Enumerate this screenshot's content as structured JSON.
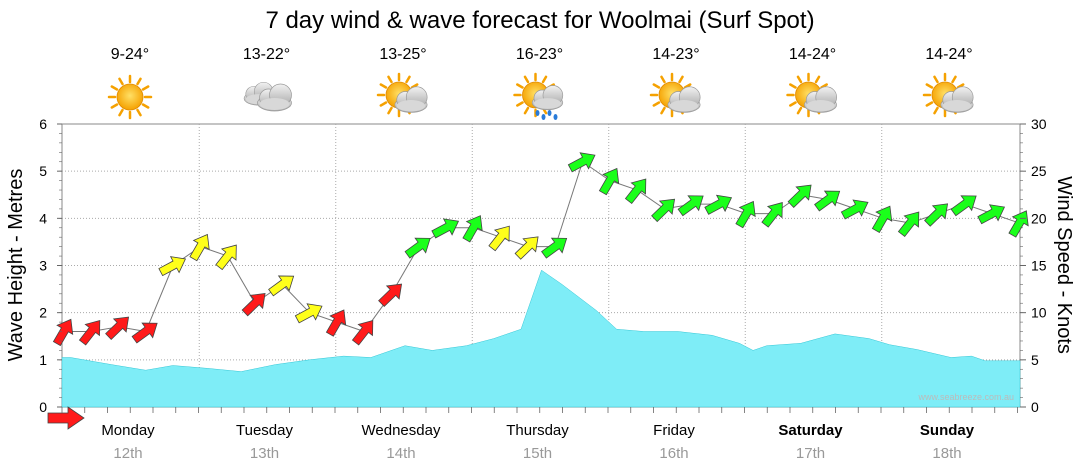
{
  "colors": {
    "wave_fill": "#7eedf7",
    "wave_stroke": "#35c7d6",
    "wind_red": "#ff1a1a",
    "wind_yellow": "#ffff1a",
    "wind_green": "#1aff1a",
    "grid": "#aaaaaa"
  },
  "weather": [
    {
      "temp": "9-24°",
      "icon": "sun-icon"
    },
    {
      "temp": "13-22°",
      "icon": "cloudy-icon"
    },
    {
      "temp": "13-25°",
      "icon": "partly-cloudy-icon"
    },
    {
      "temp": "16-23°",
      "icon": "sun-rain-icon"
    },
    {
      "temp": "14-23°",
      "icon": "partly-cloudy-icon"
    },
    {
      "temp": "14-24°",
      "icon": "partly-cloudy-icon"
    },
    {
      "temp": "14-24°",
      "icon": "partly-cloudy-icon"
    }
  ],
  "credit": "www.seabreeze.com.au",
  "chart_data": {
    "type": "area",
    "title": "7 day wind & wave forecast for Woolmai (Surf Spot)",
    "ylabel_left": "Wave Height - Metres",
    "ylabel_right": "Wind Speed - Knots",
    "ylim_left": [
      0,
      6
    ],
    "ylim_right": [
      0,
      30
    ],
    "yticks_left": [
      "0",
      "1",
      "2",
      "3",
      "4",
      "5",
      "6"
    ],
    "yticks_right": [
      "0",
      "5",
      "10",
      "15",
      "20",
      "25",
      "30"
    ],
    "grid": true,
    "days": [
      {
        "name": "Monday",
        "date": "12th",
        "bold": false
      },
      {
        "name": "Tuesday",
        "date": "13th",
        "bold": false
      },
      {
        "name": "Wednesday",
        "date": "14th",
        "bold": false
      },
      {
        "name": "Thursday",
        "date": "15th",
        "bold": false
      },
      {
        "name": "Friday",
        "date": "16th",
        "bold": false
      },
      {
        "name": "Saturday",
        "date": "17th",
        "bold": true
      },
      {
        "name": "Sunday",
        "date": "18th",
        "bold": true
      }
    ],
    "wave_series": {
      "name": "Wave Height",
      "x_days": [
        0,
        0.3,
        0.55,
        0.75,
        1.0,
        1.25,
        1.5,
        1.75,
        2.0,
        2.2,
        2.45,
        2.65,
        2.9,
        3.1,
        3.3,
        3.45,
        3.6,
        3.85,
        4.0,
        4.2,
        4.45,
        4.7,
        4.9,
        5.0,
        5.1,
        5.35,
        5.6,
        5.85,
        6.0,
        6.2,
        6.45,
        6.6,
        6.7
      ],
      "values": [
        1.05,
        0.9,
        0.78,
        0.88,
        0.82,
        0.75,
        0.9,
        1.0,
        1.08,
        1.05,
        1.3,
        1.2,
        1.3,
        1.45,
        1.65,
        2.9,
        2.6,
        2.05,
        1.65,
        1.6,
        1.6,
        1.52,
        1.35,
        1.2,
        1.3,
        1.35,
        1.55,
        1.45,
        1.32,
        1.22,
        1.05,
        1.08,
        0.98
      ]
    },
    "wind_series": {
      "name": "Wind Speed",
      "x_days": [
        -0.4,
        -0.2,
        0.0,
        0.2,
        0.4,
        0.6,
        0.8,
        1.0,
        1.2,
        1.4,
        1.6,
        1.8,
        2.0,
        2.2,
        2.4,
        2.6,
        2.8,
        3.0,
        3.2,
        3.4,
        3.6,
        3.8,
        4.0,
        4.2,
        4.4,
        4.6,
        4.8,
        5.0,
        5.2,
        5.4,
        5.6,
        5.8,
        6.0,
        6.2,
        6.4,
        6.6
      ],
      "knots": [
        8,
        8,
        8.5,
        8,
        15,
        17,
        16,
        11,
        13,
        10,
        9,
        8,
        12,
        17,
        19,
        19,
        18,
        17,
        17,
        26,
        24,
        23,
        21,
        21.5,
        21.5,
        20.5,
        20.5,
        22.5,
        22,
        21,
        20,
        19.5,
        20.5,
        21.5,
        20.5,
        19.5
      ],
      "strength": [
        "red",
        "red",
        "red",
        "red",
        "yellow",
        "yellow",
        "yellow",
        "red",
        "yellow",
        "yellow",
        "red",
        "red",
        "red",
        "green",
        "green",
        "green",
        "yellow",
        "yellow",
        "green",
        "green",
        "green",
        "green",
        "green",
        "green",
        "green",
        "green",
        "green",
        "green",
        "green",
        "green",
        "green",
        "green",
        "green",
        "green",
        "green",
        "green"
      ]
    }
  }
}
